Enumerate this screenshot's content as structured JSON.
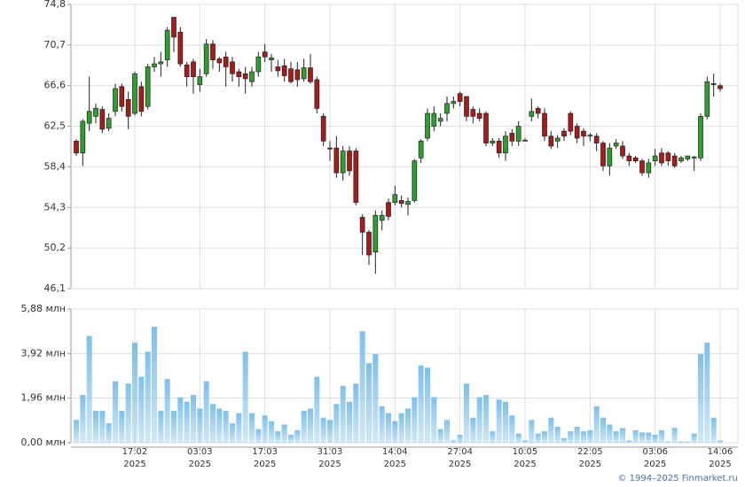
{
  "chart_data": [
    {
      "type": "candlestick",
      "ylim": [
        46.1,
        74.8
      ],
      "yticks": [
        {
          "value": 46.1,
          "label": "46,1"
        },
        {
          "value": 50.2,
          "label": "50,2"
        },
        {
          "value": 54.3,
          "label": "54,3"
        },
        {
          "value": 58.4,
          "label": "58,4"
        },
        {
          "value": 62.5,
          "label": "62,5"
        },
        {
          "value": 66.6,
          "label": "66,6"
        },
        {
          "value": 70.7,
          "label": "70,7"
        },
        {
          "value": 74.8,
          "label": "74,8"
        }
      ],
      "grid": true,
      "up_color": "#2f9e2f",
      "down_color": "#a51c1c",
      "open": [
        61,
        59.8,
        62.8,
        63.5,
        64.2,
        62.3,
        64,
        66.5,
        65.2,
        63.8,
        66.5,
        64.5,
        68.5,
        68.8,
        69.2,
        73.5,
        72,
        68.7,
        69,
        66.7,
        67.8,
        70.8,
        69.3,
        69.5,
        69,
        68,
        67.8,
        67,
        68,
        70,
        69.2,
        68.5,
        68.6,
        68.3,
        68.2,
        67.3,
        68.4,
        67.2,
        63.5,
        60.3,
        60.3,
        57.8,
        60,
        60,
        53.3,
        51.8,
        49.8,
        53,
        54.8,
        54.8,
        55,
        54.6,
        55,
        59.3,
        61.3,
        62.5,
        63,
        63.8,
        64.8,
        65.8,
        65.5,
        64.2,
        63.8,
        63.8,
        60.8,
        61,
        59.8,
        61.8,
        61,
        61,
        63.5,
        64.3,
        63.8,
        61.5,
        61,
        62,
        63.8,
        62.5,
        62,
        61.5,
        61.5,
        60.8,
        58.5,
        60.5,
        60.5,
        59.5,
        59.3,
        59,
        57.8,
        59,
        59.8,
        59.8,
        59.5,
        59,
        59.2,
        59.3,
        59.3,
        63.5,
        66.8,
        66.6
      ],
      "high": [
        61.2,
        63.2,
        67.5,
        64.8,
        64.5,
        63.8,
        66.8,
        66.8,
        66,
        68,
        67,
        68.8,
        69.5,
        70,
        72.5,
        73.5,
        72.5,
        69,
        69.3,
        68.3,
        71.3,
        71.2,
        69.5,
        70,
        69.5,
        68.3,
        68.5,
        68.5,
        70,
        70.8,
        69.8,
        69.2,
        69.3,
        69,
        69,
        69.3,
        69.8,
        67.5,
        63.8,
        61,
        61.5,
        60.5,
        60.5,
        60.3,
        53.6,
        52,
        54,
        54,
        55.2,
        56.5,
        55.5,
        55.3,
        59.2,
        61.2,
        64.3,
        64.5,
        63.8,
        65.5,
        65.5,
        66,
        65.5,
        64.5,
        64.3,
        64,
        61.3,
        61.3,
        62,
        62.2,
        63,
        61.3,
        65.3,
        64.5,
        64.3,
        62,
        61.6,
        62.3,
        64,
        62.8,
        62.3,
        61.8,
        61.8,
        61,
        60.8,
        61.2,
        61,
        59.8,
        59.5,
        59.2,
        59.2,
        60.2,
        60.3,
        60,
        59.8,
        59.5,
        59.5,
        59.5,
        63.8,
        67.5,
        67.8,
        66.8
      ],
      "low": [
        59.5,
        58.5,
        62,
        62.8,
        61.8,
        62,
        63.5,
        64,
        62.2,
        63.6,
        63.5,
        64.2,
        68,
        67.5,
        68.5,
        70,
        68.5,
        66.5,
        65.8,
        66,
        67.5,
        68.3,
        68,
        66.5,
        67,
        66.5,
        65.8,
        66.5,
        67.5,
        69,
        68,
        67.5,
        67,
        66.8,
        66.5,
        67,
        66.8,
        63.8,
        60.5,
        59,
        57.3,
        57,
        57.5,
        54.5,
        49.5,
        48.5,
        47.6,
        52,
        53,
        54.5,
        54.3,
        53.5,
        54.8,
        58.8,
        61,
        62,
        62.5,
        63,
        64.3,
        64.5,
        63,
        62.8,
        63,
        60.5,
        60.5,
        59.3,
        59,
        60.5,
        60.5,
        61,
        63,
        63.3,
        61,
        60.2,
        60.3,
        61,
        61.6,
        60.8,
        60.5,
        61,
        60,
        58,
        57.5,
        60.2,
        59.2,
        58.5,
        58.8,
        57.5,
        57.3,
        58.5,
        58.5,
        58.5,
        58.3,
        58.8,
        59,
        58,
        59,
        63.2,
        65.5,
        66
      ],
      "close": [
        59.8,
        63,
        64,
        64.3,
        62.2,
        63.3,
        66.3,
        64.5,
        63.5,
        67.8,
        64,
        68.5,
        68.8,
        69,
        72.2,
        71.5,
        68.8,
        67.5,
        67.5,
        67.5,
        70.8,
        69.2,
        68.9,
        68.5,
        67.8,
        67.5,
        67.3,
        68,
        69.5,
        69.5,
        69.4,
        68.1,
        67.6,
        67,
        67.2,
        68.4,
        67,
        64.3,
        61,
        60.2,
        57.8,
        60,
        58,
        54.8,
        51.8,
        49.5,
        53.5,
        53.5,
        53.4,
        55.6,
        54.7,
        54.9,
        59,
        61,
        63.8,
        63.8,
        63.3,
        64.8,
        65,
        65,
        63.5,
        63.5,
        63.3,
        60.8,
        61,
        59.8,
        61.5,
        61,
        62.5,
        61.1,
        64,
        63.8,
        61.5,
        60.5,
        61.3,
        61.5,
        62,
        61.3,
        61.5,
        61.6,
        60.8,
        58.5,
        60.3,
        60.8,
        59.5,
        59,
        59,
        57.8,
        58.8,
        59.5,
        58.8,
        59,
        58.5,
        59.3,
        59.5,
        59.4,
        63.5,
        67,
        66.7,
        66.3
      ]
    },
    {
      "type": "bar",
      "color": "#7cbfee",
      "ylim": [
        0,
        5.88
      ],
      "yticks": [
        {
          "value": 0,
          "label": "0,00 млн"
        },
        {
          "value": 1.96,
          "label": "1,96 млн"
        },
        {
          "value": 3.92,
          "label": "3,92 млн"
        },
        {
          "value": 5.88,
          "label": "5,88 млн"
        }
      ],
      "grid": true,
      "categories": [
        null,
        null,
        null,
        null,
        null,
        null,
        null,
        null,
        null,
        "17.02\n2025",
        null,
        null,
        null,
        null,
        null,
        null,
        null,
        null,
        null,
        "03.03\n2025",
        null,
        null,
        null,
        null,
        null,
        null,
        null,
        null,
        null,
        "17.03\n2025",
        null,
        null,
        null,
        null,
        null,
        null,
        null,
        null,
        null,
        "31.03\n2025",
        null,
        null,
        null,
        null,
        null,
        null,
        null,
        null,
        null,
        "14.04\n2025",
        null,
        null,
        null,
        null,
        null,
        null,
        null,
        null,
        null,
        "27.04\n2025",
        null,
        null,
        null,
        null,
        null,
        null,
        null,
        null,
        null,
        "10.05\n2025",
        null,
        null,
        null,
        null,
        null,
        null,
        null,
        null,
        null,
        "22.05\n2025",
        null,
        null,
        null,
        null,
        null,
        null,
        null,
        null,
        null,
        "03.06\n2025",
        null,
        null,
        null,
        null,
        null,
        null,
        null,
        null,
        null,
        "14.06\n2025"
      ],
      "values": [
        1,
        2.1,
        4.7,
        1.4,
        1.4,
        0.85,
        2.7,
        1.4,
        2.6,
        4.4,
        2.9,
        4,
        5.1,
        1.4,
        2.8,
        1.4,
        2,
        1.8,
        2.1,
        1.5,
        2.7,
        1.7,
        1.5,
        1.4,
        0.85,
        1.3,
        4,
        1.3,
        0.6,
        1.2,
        0.95,
        0.5,
        0.8,
        0.35,
        0.55,
        1.4,
        1.5,
        2.9,
        1.1,
        1,
        1.7,
        2.5,
        1.8,
        2.6,
        4.9,
        3.5,
        3.9,
        1.6,
        1.3,
        0.95,
        1.3,
        1.5,
        2,
        3.4,
        3.3,
        2,
        0.6,
        1,
        0.1,
        0.35,
        2.6,
        1.1,
        2,
        2.1,
        0.5,
        1.9,
        1.8,
        1.2,
        0.4,
        0.1,
        1,
        0.4,
        0.5,
        1.1,
        0.7,
        0.2,
        0.5,
        0.7,
        0.5,
        0.55,
        1.6,
        1.1,
        0.8,
        0.5,
        0.65,
        0.1,
        0.55,
        0.45,
        0.45,
        0.35,
        0.55,
        0.05,
        0.65,
        0.05,
        0.05,
        0.4,
        3.9,
        4.4,
        1.1,
        0.1
      ]
    }
  ],
  "footer": "© 1994–2025 Finmarket.ru"
}
